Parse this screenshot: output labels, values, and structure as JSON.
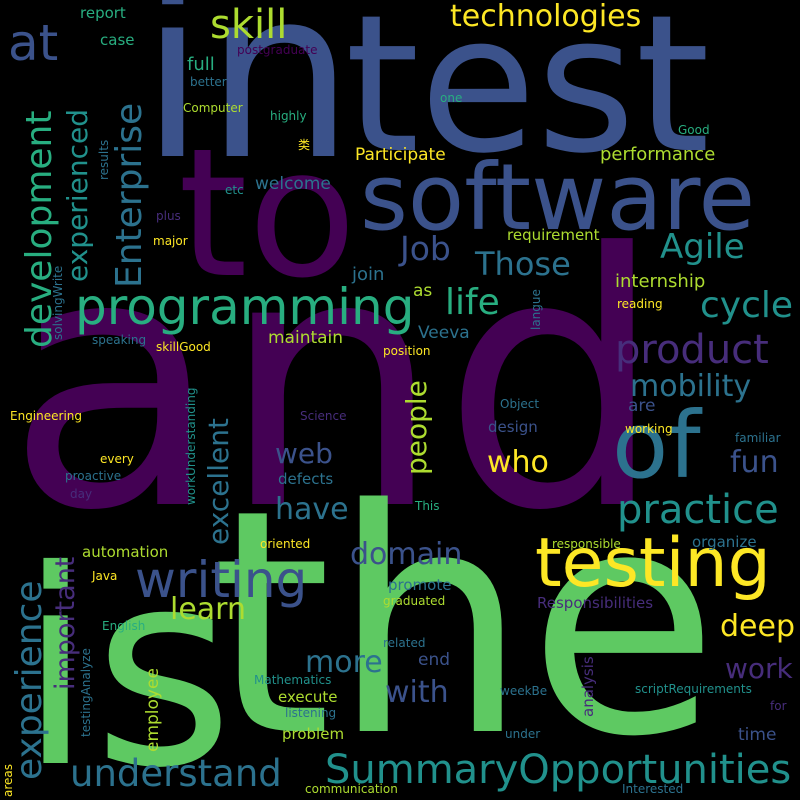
{
  "palette": {
    "background": "#000000",
    "dark_purple": "#440154",
    "purple": "#472d7b",
    "indigo": "#3b528b",
    "blue": "#2c728e",
    "teal": "#21918c",
    "sea_green": "#28ae80",
    "green": "#5ec962",
    "lime": "#addc30",
    "yellow": "#fde725"
  },
  "words": {
    "and": "and",
    "the": "the",
    "is": "is",
    "in": "in",
    "test": "test",
    "to": "to",
    "software": "software",
    "of": "of",
    "testing": "testing",
    "programming": "programming",
    "writing": "writing",
    "at": "at",
    "skill": "skill",
    "technologies": "technologies",
    "summary_opportunities": "SummaryOpportunities",
    "understand": "understand",
    "practice": "practice",
    "product": "product",
    "agile": "Agile",
    "enterprise": "Enterprise",
    "development": "development",
    "experience": "experience",
    "experienced": "experienced",
    "excellent": "excellent",
    "life": "life",
    "cycle": "cycle",
    "job": "Job",
    "those": "Those",
    "mobility": "mobility",
    "domain": "domain",
    "learn": "learn",
    "more": "more",
    "with": "with",
    "who": "who",
    "have": "have",
    "web": "web",
    "fun": "fun",
    "deep": "deep",
    "work": "work",
    "people": "people",
    "important": "important",
    "performance": "performance",
    "participate": "Participate",
    "internship": "internship",
    "welcome": "welcome",
    "full": "full",
    "report": "report",
    "case": "case",
    "postgraduate": "postgraduate",
    "better": "better",
    "computer": "Computer",
    "highly": "highly",
    "one": "one",
    "good": "Good",
    "lei": "类",
    "etc": "etc",
    "results": "results",
    "plus": "plus",
    "major": "major",
    "requirement": "requirement",
    "join": "join",
    "as": "as",
    "reading": "reading",
    "langue": "langue",
    "veeva": "Veeva",
    "maintain": "maintain",
    "speaking": "speaking",
    "skillgood": "skillGood",
    "position": "position",
    "solvingwrite": "solvingWrite",
    "engineering": "Engineering",
    "science": "Science",
    "object": "Object",
    "are": "are",
    "working": "working",
    "familiar": "familiar",
    "design": "design",
    "every": "every",
    "proactive": "proactive",
    "day": "day",
    "workunderstanding": "workUnderstanding",
    "defects": "defects",
    "this": "This",
    "automation": "automation",
    "oriented": "oriented",
    "responsible": "responsible",
    "organize": "organize",
    "java": "Java",
    "promote": "promote",
    "graduated": "graduated",
    "responsibilities": "Responsibilities",
    "english": "English",
    "related": "related",
    "end": "end",
    "testinganalyze": "testingAnalyze",
    "employee": "employee",
    "mathematics": "Mathematics",
    "weekbe": "weekBe",
    "scriptrequirements": "scriptRequirements",
    "execute": "execute",
    "listening": "listening",
    "analysis": "analysis",
    "for": "for",
    "problem": "problem",
    "under": "under",
    "time": "time",
    "areas": "areas",
    "communication": "communication",
    "interested": "Interested"
  }
}
